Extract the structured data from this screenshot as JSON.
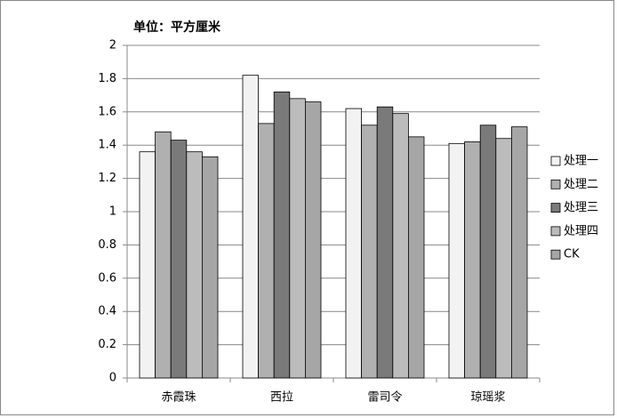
{
  "chart_data": {
    "type": "bar",
    "title": "单位：平方厘米",
    "categories": [
      "赤霞珠",
      "西拉",
      "雷司令",
      "琼瑶浆"
    ],
    "series": [
      {
        "name": "处理一",
        "color": "#f2f2f2",
        "values": [
          1.36,
          1.82,
          1.62,
          1.41
        ]
      },
      {
        "name": "处理二",
        "color": "#b0b0b0",
        "values": [
          1.48,
          1.53,
          1.52,
          1.42
        ]
      },
      {
        "name": "处理三",
        "color": "#7a7a7a",
        "values": [
          1.43,
          1.72,
          1.63,
          1.52
        ]
      },
      {
        "name": "处理四",
        "color": "#bcbcbc",
        "values": [
          1.36,
          1.68,
          1.59,
          1.44
        ]
      },
      {
        "name": "CK",
        "color": "#a6a6a6",
        "values": [
          1.33,
          1.66,
          1.45,
          1.51
        ]
      }
    ],
    "ylim": [
      0,
      2
    ],
    "yticks": [
      0,
      0.2,
      0.4,
      0.6,
      0.8,
      1,
      1.2,
      1.4,
      1.6,
      1.8,
      2
    ],
    "grid": true,
    "legend": "right"
  }
}
